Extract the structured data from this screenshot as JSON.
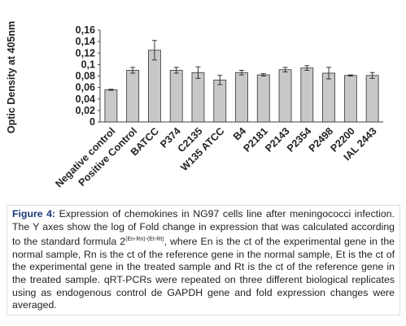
{
  "chart_data": {
    "type": "bar",
    "y_label": "Optic Density at 405nm",
    "categories": [
      "Negative control",
      "Positive Control",
      "BATCC",
      "P374",
      "C2135",
      "W135 ATCC",
      "B4",
      "P2181",
      "P2143",
      "P2354",
      "P2498",
      "P2200",
      "IAL 2443"
    ],
    "values": [
      0.056,
      0.09,
      0.125,
      0.09,
      0.086,
      0.073,
      0.086,
      0.082,
      0.091,
      0.094,
      0.085,
      0.081,
      0.081
    ],
    "errors": [
      0.001,
      0.005,
      0.017,
      0.005,
      0.01,
      0.008,
      0.004,
      0.002,
      0.004,
      0.004,
      0.01,
      0.001,
      0.005
    ],
    "color": "#c8c8c8",
    "ylim": [
      0,
      0.16
    ],
    "yticks": [
      0,
      {
        "value": 0.02,
        "label": "0,02"
      },
      {
        "value": 0.04,
        "label": "0,04"
      },
      {
        "value": 0.06,
        "label": "0,06"
      },
      {
        "value": 0.08,
        "label": "0,08"
      },
      {
        "value": 0.1,
        "label": "0,1"
      },
      {
        "value": 0.12,
        "label": "0,12"
      },
      {
        "value": 0.14,
        "label": "0,14"
      },
      {
        "value": 0.16,
        "label": "0,16"
      }
    ],
    "grid": false
  },
  "caption": {
    "label": "Figure 4:",
    "text_before": "Expression of chemokines in NG97 cells line after meningococci infection. The Y axes show the log of Fold change in expression that was calculated according to the standard formula 2",
    "superscript": "(En-Rn)-(Et-Rt)",
    "text_after": ", where En is the ct of the experimental gene in the normal sample, Rn is the ct of the reference gene in the normal sample, Et is the ct of the experimental gene in the treated sample and Rt is the ct of the reference gene in the treated sample. qRT-PCRs were repeated on three different biological replicates using as endogenous control de GAPDH gene and fold expression changes were averaged."
  }
}
